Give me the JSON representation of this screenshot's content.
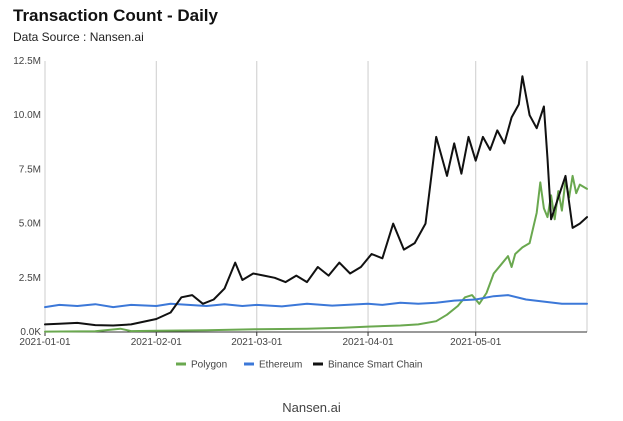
{
  "chart_data": {
    "type": "line",
    "title": "Transaction Count - Daily",
    "subtitle": "Data Source : Nansen.ai",
    "xlabel": "",
    "ylabel": "",
    "x_range": [
      "2021-01-01",
      "2021-06-01"
    ],
    "x_ticks": [
      "2021-01-01",
      "2021-02-01",
      "2021-03-01",
      "2021-04-01",
      "2021-05-01"
    ],
    "ylim": [
      0,
      12500000
    ],
    "y_ticks": [
      {
        "value": 0,
        "label": "0.0K"
      },
      {
        "value": 2500000,
        "label": "2.5M"
      },
      {
        "value": 5000000,
        "label": "5.0M"
      },
      {
        "value": 7500000,
        "label": "7.5M"
      },
      {
        "value": 10000000,
        "label": "10.0M"
      },
      {
        "value": 12500000,
        "label": "12.5M"
      }
    ],
    "grid": "vertical",
    "legend": "bottom",
    "series": [
      {
        "name": "Polygon",
        "color": "#6aa84f",
        "points": [
          [
            "2021-01-01",
            20000
          ],
          [
            "2021-01-15",
            30000
          ],
          [
            "2021-01-22",
            150000
          ],
          [
            "2021-01-25",
            40000
          ],
          [
            "2021-02-01",
            60000
          ],
          [
            "2021-02-15",
            80000
          ],
          [
            "2021-03-01",
            130000
          ],
          [
            "2021-03-15",
            150000
          ],
          [
            "2021-03-25",
            200000
          ],
          [
            "2021-04-01",
            250000
          ],
          [
            "2021-04-10",
            300000
          ],
          [
            "2021-04-15",
            350000
          ],
          [
            "2021-04-20",
            500000
          ],
          [
            "2021-04-23",
            800000
          ],
          [
            "2021-04-26",
            1200000
          ],
          [
            "2021-04-28",
            1600000
          ],
          [
            "2021-04-30",
            1700000
          ],
          [
            "2021-05-02",
            1300000
          ],
          [
            "2021-05-04",
            1800000
          ],
          [
            "2021-05-06",
            2700000
          ],
          [
            "2021-05-08",
            3100000
          ],
          [
            "2021-05-10",
            3500000
          ],
          [
            "2021-05-11",
            3000000
          ],
          [
            "2021-05-12",
            3600000
          ],
          [
            "2021-05-14",
            3900000
          ],
          [
            "2021-05-16",
            4100000
          ],
          [
            "2021-05-18",
            5500000
          ],
          [
            "2021-05-19",
            6900000
          ],
          [
            "2021-05-20",
            5700000
          ],
          [
            "2021-05-21",
            5300000
          ],
          [
            "2021-05-22",
            6300000
          ],
          [
            "2021-05-23",
            5200000
          ],
          [
            "2021-05-24",
            6500000
          ],
          [
            "2021-05-25",
            5600000
          ],
          [
            "2021-05-26",
            7000000
          ],
          [
            "2021-05-27",
            6200000
          ],
          [
            "2021-05-28",
            7200000
          ],
          [
            "2021-05-29",
            6400000
          ],
          [
            "2021-05-30",
            6800000
          ],
          [
            "2021-06-01",
            6600000
          ]
        ]
      },
      {
        "name": "Ethereum",
        "color": "#3c78d8",
        "points": [
          [
            "2021-01-01",
            1150000
          ],
          [
            "2021-01-05",
            1250000
          ],
          [
            "2021-01-10",
            1200000
          ],
          [
            "2021-01-15",
            1280000
          ],
          [
            "2021-01-20",
            1150000
          ],
          [
            "2021-01-25",
            1250000
          ],
          [
            "2021-02-01",
            1200000
          ],
          [
            "2021-02-05",
            1300000
          ],
          [
            "2021-02-10",
            1250000
          ],
          [
            "2021-02-15",
            1200000
          ],
          [
            "2021-02-20",
            1280000
          ],
          [
            "2021-02-25",
            1200000
          ],
          [
            "2021-03-01",
            1250000
          ],
          [
            "2021-03-08",
            1180000
          ],
          [
            "2021-03-15",
            1300000
          ],
          [
            "2021-03-22",
            1220000
          ],
          [
            "2021-04-01",
            1300000
          ],
          [
            "2021-04-05",
            1250000
          ],
          [
            "2021-04-10",
            1350000
          ],
          [
            "2021-04-15",
            1300000
          ],
          [
            "2021-04-20",
            1350000
          ],
          [
            "2021-04-25",
            1450000
          ],
          [
            "2021-05-01",
            1500000
          ],
          [
            "2021-05-06",
            1650000
          ],
          [
            "2021-05-10",
            1700000
          ],
          [
            "2021-05-15",
            1500000
          ],
          [
            "2021-05-20",
            1400000
          ],
          [
            "2021-05-25",
            1300000
          ],
          [
            "2021-06-01",
            1300000
          ]
        ]
      },
      {
        "name": "Binance Smart Chain",
        "color": "#111111",
        "points": [
          [
            "2021-01-01",
            350000
          ],
          [
            "2021-01-05",
            380000
          ],
          [
            "2021-01-10",
            420000
          ],
          [
            "2021-01-15",
            320000
          ],
          [
            "2021-01-20",
            300000
          ],
          [
            "2021-01-25",
            350000
          ],
          [
            "2021-02-01",
            600000
          ],
          [
            "2021-02-05",
            900000
          ],
          [
            "2021-02-08",
            1600000
          ],
          [
            "2021-02-11",
            1700000
          ],
          [
            "2021-02-14",
            1300000
          ],
          [
            "2021-02-17",
            1500000
          ],
          [
            "2021-02-20",
            2000000
          ],
          [
            "2021-02-23",
            3200000
          ],
          [
            "2021-02-25",
            2400000
          ],
          [
            "2021-02-28",
            2700000
          ],
          [
            "2021-03-03",
            2600000
          ],
          [
            "2021-03-06",
            2500000
          ],
          [
            "2021-03-09",
            2300000
          ],
          [
            "2021-03-12",
            2600000
          ],
          [
            "2021-03-15",
            2300000
          ],
          [
            "2021-03-18",
            3000000
          ],
          [
            "2021-03-21",
            2600000
          ],
          [
            "2021-03-24",
            3200000
          ],
          [
            "2021-03-27",
            2700000
          ],
          [
            "2021-03-30",
            3000000
          ],
          [
            "2021-04-02",
            3600000
          ],
          [
            "2021-04-05",
            3400000
          ],
          [
            "2021-04-08",
            5000000
          ],
          [
            "2021-04-11",
            3800000
          ],
          [
            "2021-04-14",
            4100000
          ],
          [
            "2021-04-17",
            5000000
          ],
          [
            "2021-04-20",
            9000000
          ],
          [
            "2021-04-23",
            7200000
          ],
          [
            "2021-04-25",
            8700000
          ],
          [
            "2021-04-27",
            7300000
          ],
          [
            "2021-04-29",
            9000000
          ],
          [
            "2021-05-01",
            7900000
          ],
          [
            "2021-05-03",
            9000000
          ],
          [
            "2021-05-05",
            8400000
          ],
          [
            "2021-05-07",
            9300000
          ],
          [
            "2021-05-09",
            8700000
          ],
          [
            "2021-05-11",
            9900000
          ],
          [
            "2021-05-13",
            10500000
          ],
          [
            "2021-05-14",
            11800000
          ],
          [
            "2021-05-16",
            10000000
          ],
          [
            "2021-05-18",
            9400000
          ],
          [
            "2021-05-20",
            10400000
          ],
          [
            "2021-05-21",
            8000000
          ],
          [
            "2021-05-22",
            5200000
          ],
          [
            "2021-05-24",
            6200000
          ],
          [
            "2021-05-26",
            7200000
          ],
          [
            "2021-05-28",
            4800000
          ],
          [
            "2021-05-30",
            5000000
          ],
          [
            "2021-06-01",
            5300000
          ]
        ]
      }
    ]
  },
  "caption": "Nansen.ai"
}
